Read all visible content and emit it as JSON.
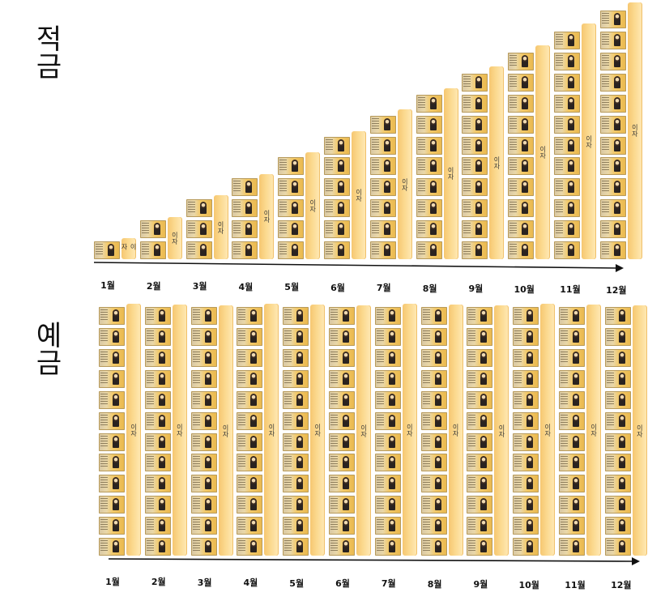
{
  "sections": [
    {
      "title": "적금",
      "months": [
        "1월",
        "2월",
        "3월",
        "4월",
        "5월",
        "6월",
        "7월",
        "8월",
        "9월",
        "10월",
        "11월",
        "12월"
      ],
      "interest_label": "이자"
    },
    {
      "title": "예금",
      "months": [
        "1월",
        "2월",
        "3월",
        "4월",
        "5월",
        "6월",
        "7월",
        "8월",
        "9월",
        "10월",
        "11월",
        "12월"
      ],
      "interest_label": "이자"
    }
  ],
  "colors": {
    "interest_bar": "#fbd98f",
    "bill": "#f3c968",
    "text": "#111111"
  },
  "icons": {
    "bill": "korean-banknote-icon",
    "arrow": "right-arrow-icon"
  }
}
